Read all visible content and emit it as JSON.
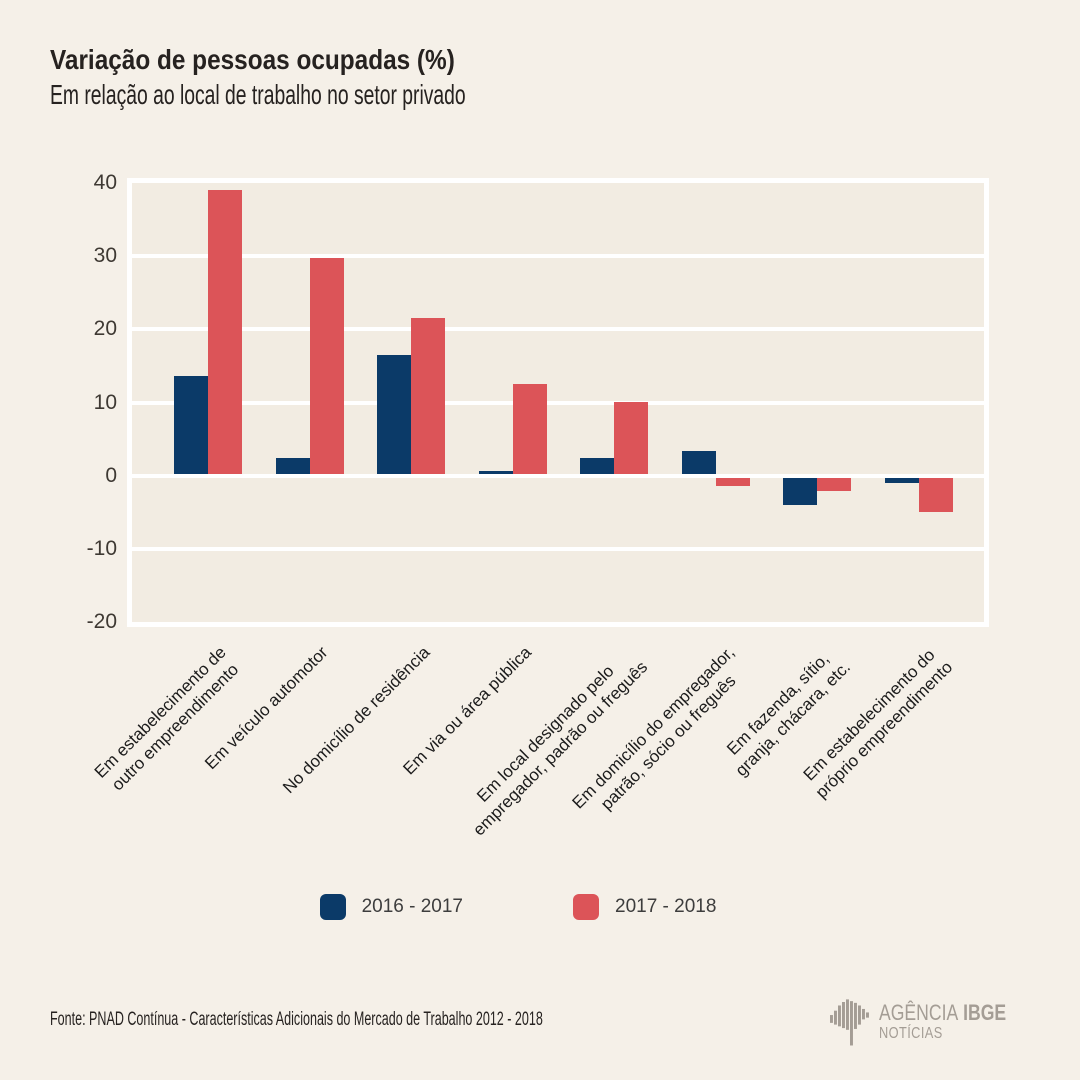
{
  "page": {
    "background": "#f5f0e8",
    "plot_background": "#f2ece2",
    "gridline_color": "#ffffff"
  },
  "header": {
    "title": "Variação de pessoas ocupadas (%)",
    "subtitle": "Em relação ao local de trabalho no setor privado"
  },
  "chart_data": {
    "type": "bar",
    "title": "Variação de pessoas ocupadas (%)",
    "subtitle": "Em relação ao local de trabalho no setor privado",
    "categories": [
      "Em estabelecimento de\noutro empreendimento",
      "Em veículo automotor",
      "No domicílio de residência",
      "Em via ou área pública",
      "Em local designado pelo\nempregador, padrão ou freguês",
      "Em domicílio do empregador,\npatrão, sócio ou freguês",
      "Em fazenda, sítio,\ngranja, chácara, etc.",
      "Em estabelecimento do\npróprio empreendimento"
    ],
    "series": [
      {
        "name": "2016 - 2017",
        "color": "#0b3a68",
        "values": [
          13.6,
          2.4,
          16.5,
          0.7,
          2.4,
          3.4,
          -4.0,
          -1.0
        ]
      },
      {
        "name": "2017 - 2018",
        "color": "#dc5458",
        "values": [
          39.0,
          29.7,
          21.5,
          12.5,
          10.1,
          -1.4,
          -2.1,
          -5.0
        ]
      }
    ],
    "ylim": [
      -20,
      40
    ],
    "yticks": [
      40,
      30,
      20,
      10,
      0,
      -10,
      -20
    ],
    "grid": true,
    "legend_position": "bottom"
  },
  "footer": {
    "source": "Fonte: PNAD Contínua - Características Adicionais do Mercado de Trabalho 2012 - 2018"
  },
  "logo": {
    "agency": "AGÊNCIA",
    "brand": "IBGE",
    "noticias": "NOTÍCIAS",
    "color": "#a49d95",
    "symbol": "ibge-brazil-bars"
  }
}
